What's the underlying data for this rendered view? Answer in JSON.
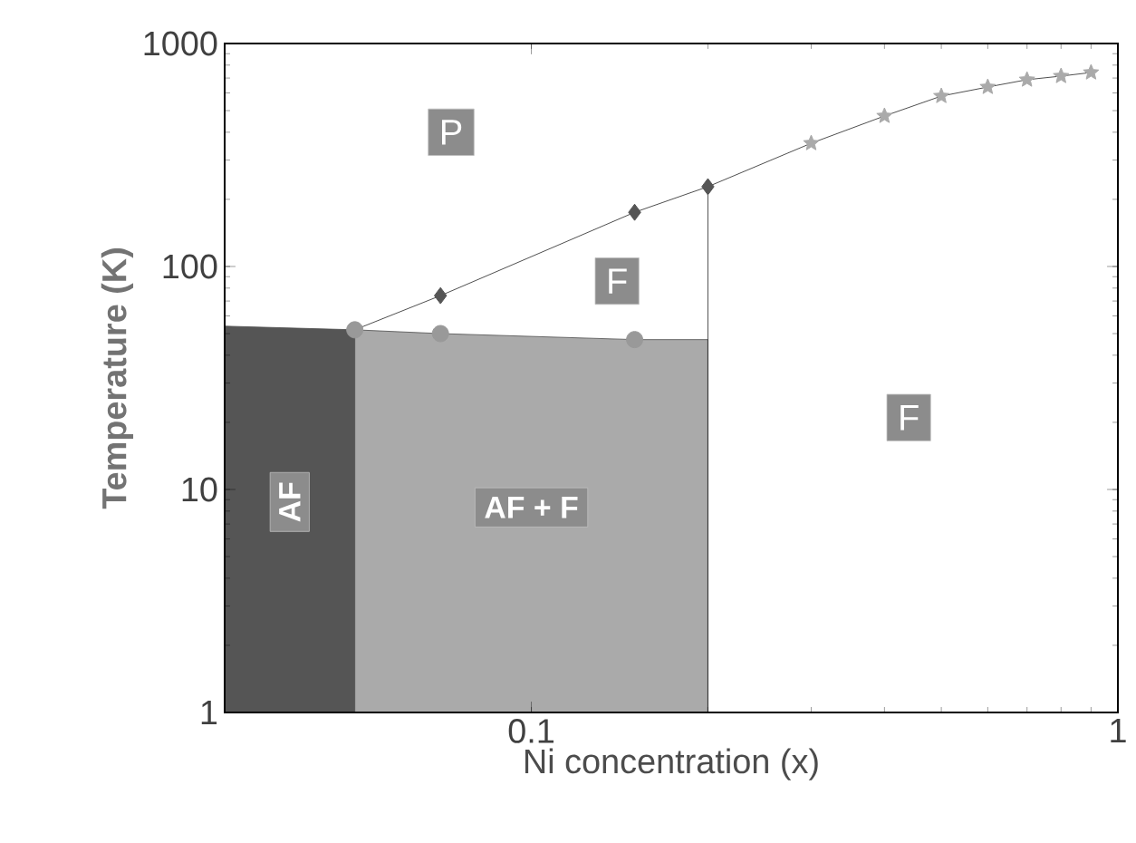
{
  "chart_data": {
    "type": "line",
    "xlabel": "Ni concentration (x)",
    "ylabel": "Temperature (K)",
    "log": "xy",
    "xlim": [
      0.03,
      1
    ],
    "ylim": [
      1,
      1000
    ],
    "xticks": [
      0.1,
      1
    ],
    "yticks": [
      1,
      10,
      100,
      1000
    ],
    "grid": false,
    "series": [
      {
        "name": "AF",
        "type": "area",
        "color": "#555555",
        "x": [
          0.03,
          0.05
        ],
        "values": [
          54,
          52
        ]
      },
      {
        "name": "AF + F",
        "type": "area",
        "color": "#aaaaaa",
        "x": [
          0.05,
          0.07,
          0.15,
          0.2
        ],
        "values": [
          52,
          50,
          47,
          47
        ]
      },
      {
        "color": "#222222",
        "marker": "none",
        "x": [
          0.2,
          0.2
        ],
        "values": [
          1,
          228
        ]
      },
      {
        "color": "#222222",
        "marker": "none",
        "x": [
          0.05,
          0.07,
          0.15,
          0.2,
          0.3,
          0.4,
          0.5,
          0.6,
          0.7,
          0.8,
          0.9
        ],
        "values": [
          52,
          74,
          175,
          228,
          357,
          473,
          581,
          638,
          688,
          714,
          741
        ]
      },
      {
        "type": "scatter",
        "color": "#999999",
        "marker": "circle",
        "x": [
          0.05,
          0.07,
          0.15
        ],
        "values": [
          52,
          50,
          47
        ]
      },
      {
        "type": "scatter",
        "color": "#555555",
        "marker": "diamond",
        "x": [
          0.07,
          0.15,
          0.2
        ],
        "values": [
          74,
          175,
          228
        ]
      },
      {
        "type": "scatter",
        "color": "#aaaaaa",
        "marker": "star",
        "x": [
          0.3,
          0.4,
          0.5,
          0.6,
          0.7,
          0.8,
          0.9
        ],
        "values": [
          357,
          473,
          581,
          638,
          688,
          714,
          741
        ]
      }
    ],
    "annotations": [
      {
        "text": "P",
        "x": 0.073,
        "y": 400
      },
      {
        "text": "F",
        "x": 0.14,
        "y": 86
      },
      {
        "text": "F",
        "x": 0.44,
        "y": 21
      }
    ]
  }
}
